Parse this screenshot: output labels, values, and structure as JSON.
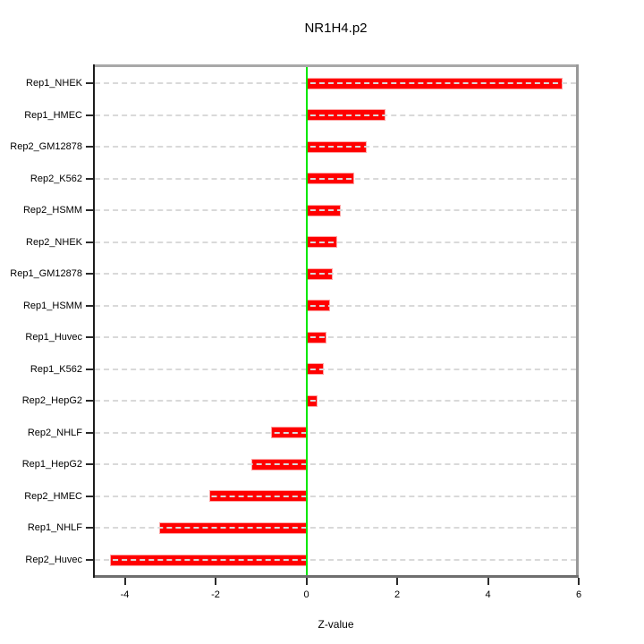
{
  "title": "NR1H4.p2",
  "chart_data": {
    "type": "bar",
    "orientation": "horizontal",
    "title": "NR1H4.p2",
    "xlabel": "Z-value",
    "categories": [
      "Rep1_NHEK",
      "Rep1_HMEC",
      "Rep2_GM12878",
      "Rep2_K562",
      "Rep2_HSMM",
      "Rep2_NHEK",
      "Rep1_GM12878",
      "Rep1_HSMM",
      "Rep1_Huvec",
      "Rep1_K562",
      "Rep2_HepG2",
      "Rep2_NHLF",
      "Rep1_HepG2",
      "Rep2_HMEC",
      "Rep1_NHLF",
      "Rep2_Huvec"
    ],
    "values": [
      5.62,
      1.73,
      1.31,
      1.04,
      0.73,
      0.66,
      0.57,
      0.51,
      0.43,
      0.37,
      0.22,
      -0.75,
      -1.2,
      -2.12,
      -3.23,
      -4.31
    ],
    "x_ticks": [
      -4,
      -2,
      0,
      2,
      4,
      6
    ],
    "xlim": [
      -4.7,
      6.0
    ],
    "grid": "dashed-horizontal-per-category",
    "legend": null,
    "colors": {
      "bar": "#ff0000",
      "zero_line": "#00e800",
      "gridline": "#d9d9d9",
      "text": "#000000",
      "box": "#8a8a8a"
    }
  }
}
